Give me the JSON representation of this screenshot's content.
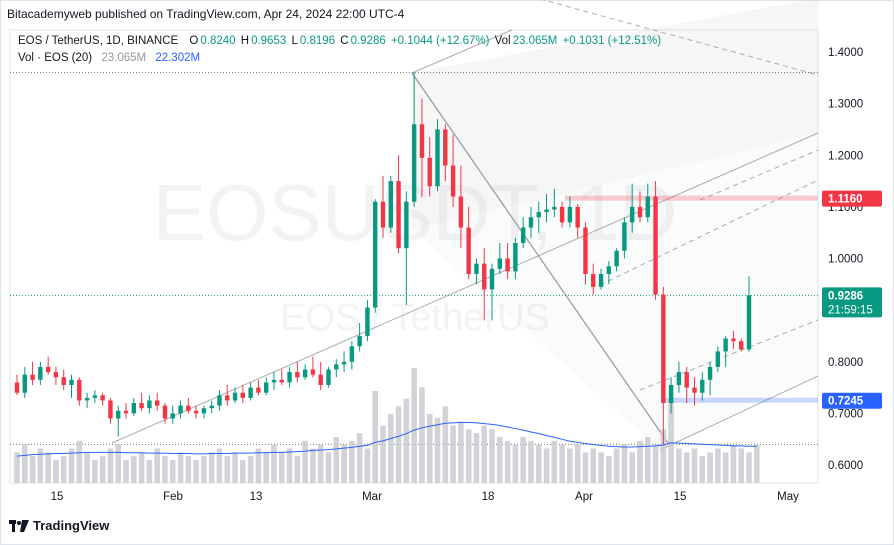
{
  "header": {
    "publisher_line": "Bitacademyweb published on TradingView.com, Apr 24, 2024 22:00 UTC-4"
  },
  "legend": {
    "symbol": "EOS / TetherUS, 1D, BINANCE",
    "open_label": "O",
    "open": "0.8240",
    "high_label": "H",
    "high": "0.9653",
    "low_label": "L",
    "low": "0.8196",
    "close_label": "C",
    "close": "0.9286",
    "change": "+0.1044 (+12.67%)",
    "vol_label": "Vol",
    "vol": "23.065M",
    "vol_change": "+0.1031 (+12.51%)",
    "vol_indicator": "Vol · EOS (20)",
    "vol_value": "23.065M",
    "vol_ma": "22.302M"
  },
  "watermark": {
    "symbol": "EOSUSDT, 1D",
    "name": "EOS / TetherUS"
  },
  "footer": {
    "brand": "TradingView"
  },
  "colors": {
    "up": "#089981",
    "down": "#f23645",
    "volume": "#c9cbd1",
    "vol_ma": "#2962ff",
    "resistance": "#f23645",
    "support": "#2962ff",
    "channel": "#a9acb4",
    "price_tag": "#089981"
  },
  "chart_data": {
    "type": "candlestick",
    "y_scale": {
      "min": 0.56,
      "max": 1.42
    },
    "y_ticks": [
      "1.4000",
      "1.3000",
      "1.2000",
      "1.1000",
      "1.0000",
      "0.9000",
      "0.8000",
      "0.7000",
      "0.6000"
    ],
    "x_ticks": [
      "15",
      "Feb",
      "13",
      "Mar",
      "18",
      "Apr",
      "15",
      "May"
    ],
    "tags": [
      {
        "label": "1.1160",
        "value": 1.116,
        "color": "#f23645"
      },
      {
        "label": "0.9286",
        "sub": "21:59:15",
        "value": 0.9286,
        "color": "#089981"
      },
      {
        "label": "0.7245",
        "value": 0.7245,
        "color": "#2962ff"
      }
    ],
    "candles": [
      [
        0.76,
        0.775,
        0.735,
        0.74
      ],
      [
        0.74,
        0.79,
        0.73,
        0.775
      ],
      [
        0.775,
        0.8,
        0.755,
        0.765
      ],
      [
        0.765,
        0.8,
        0.755,
        0.79
      ],
      [
        0.79,
        0.81,
        0.775,
        0.78
      ],
      [
        0.78,
        0.79,
        0.755,
        0.77
      ],
      [
        0.77,
        0.785,
        0.745,
        0.755
      ],
      [
        0.755,
        0.775,
        0.73,
        0.765
      ],
      [
        0.765,
        0.77,
        0.715,
        0.725
      ],
      [
        0.725,
        0.74,
        0.71,
        0.73
      ],
      [
        0.73,
        0.745,
        0.72,
        0.735
      ],
      [
        0.735,
        0.74,
        0.715,
        0.725
      ],
      [
        0.725,
        0.73,
        0.68,
        0.69
      ],
      [
        0.69,
        0.715,
        0.655,
        0.705
      ],
      [
        0.705,
        0.72,
        0.69,
        0.7
      ],
      [
        0.7,
        0.73,
        0.695,
        0.72
      ],
      [
        0.72,
        0.74,
        0.705,
        0.71
      ],
      [
        0.71,
        0.735,
        0.7,
        0.725
      ],
      [
        0.725,
        0.74,
        0.705,
        0.715
      ],
      [
        0.715,
        0.72,
        0.68,
        0.69
      ],
      [
        0.69,
        0.715,
        0.68,
        0.7
      ],
      [
        0.7,
        0.725,
        0.69,
        0.715
      ],
      [
        0.715,
        0.73,
        0.7,
        0.705
      ],
      [
        0.705,
        0.715,
        0.69,
        0.7
      ],
      [
        0.7,
        0.715,
        0.69,
        0.71
      ],
      [
        0.71,
        0.725,
        0.7,
        0.715
      ],
      [
        0.715,
        0.745,
        0.705,
        0.735
      ],
      [
        0.735,
        0.755,
        0.715,
        0.725
      ],
      [
        0.725,
        0.75,
        0.72,
        0.74
      ],
      [
        0.74,
        0.755,
        0.72,
        0.73
      ],
      [
        0.73,
        0.76,
        0.725,
        0.75
      ],
      [
        0.75,
        0.765,
        0.735,
        0.74
      ],
      [
        0.74,
        0.77,
        0.735,
        0.76
      ],
      [
        0.76,
        0.78,
        0.745,
        0.765
      ],
      [
        0.765,
        0.785,
        0.755,
        0.76
      ],
      [
        0.76,
        0.79,
        0.75,
        0.78
      ],
      [
        0.78,
        0.8,
        0.76,
        0.77
      ],
      [
        0.77,
        0.795,
        0.765,
        0.785
      ],
      [
        0.785,
        0.81,
        0.77,
        0.775
      ],
      [
        0.775,
        0.8,
        0.745,
        0.755
      ],
      [
        0.755,
        0.79,
        0.75,
        0.785
      ],
      [
        0.785,
        0.805,
        0.77,
        0.795
      ],
      [
        0.795,
        0.82,
        0.78,
        0.8
      ],
      [
        0.8,
        0.84,
        0.785,
        0.83
      ],
      [
        0.83,
        0.875,
        0.82,
        0.85
      ],
      [
        0.85,
        0.92,
        0.84,
        0.905
      ],
      [
        0.905,
        1.115,
        0.895,
        1.11
      ],
      [
        1.11,
        1.16,
        1.04,
        1.06
      ],
      [
        1.06,
        1.16,
        1.05,
        1.15
      ],
      [
        1.15,
        1.2,
        1.01,
        1.02
      ],
      [
        1.02,
        1.13,
        0.91,
        1.11
      ],
      [
        1.11,
        1.36,
        1.1,
        1.26
      ],
      [
        1.26,
        1.31,
        1.12,
        1.195
      ],
      [
        1.195,
        1.235,
        1.12,
        1.14
      ],
      [
        1.14,
        1.27,
        1.13,
        1.25
      ],
      [
        1.25,
        1.26,
        1.15,
        1.18
      ],
      [
        1.18,
        1.24,
        1.1,
        1.12
      ],
      [
        1.12,
        1.18,
        1.02,
        1.06
      ],
      [
        1.06,
        1.1,
        0.96,
        0.97
      ],
      [
        0.97,
        1.0,
        0.95,
        0.99
      ],
      [
        0.99,
        1.02,
        0.88,
        0.94
      ],
      [
        0.94,
        0.99,
        0.88,
        0.98
      ],
      [
        0.98,
        1.03,
        0.97,
        1.0
      ],
      [
        1.0,
        1.03,
        0.96,
        0.975
      ],
      [
        0.975,
        1.04,
        0.96,
        1.03
      ],
      [
        1.03,
        1.08,
        1.02,
        1.06
      ],
      [
        1.06,
        1.1,
        1.04,
        1.08
      ],
      [
        1.08,
        1.11,
        1.05,
        1.09
      ],
      [
        1.09,
        1.125,
        1.07,
        1.095
      ],
      [
        1.095,
        1.135,
        1.08,
        1.1
      ],
      [
        1.1,
        1.11,
        1.06,
        1.07
      ],
      [
        1.07,
        1.12,
        1.06,
        1.1
      ],
      [
        1.1,
        1.105,
        1.04,
        1.06
      ],
      [
        1.06,
        1.07,
        0.95,
        0.97
      ],
      [
        0.97,
        0.99,
        0.93,
        0.945
      ],
      [
        0.945,
        0.98,
        0.94,
        0.97
      ],
      [
        0.97,
        0.995,
        0.95,
        0.985
      ],
      [
        0.985,
        1.02,
        0.975,
        1.015
      ],
      [
        1.015,
        1.08,
        1.0,
        1.07
      ],
      [
        1.07,
        1.145,
        1.05,
        1.1
      ],
      [
        1.1,
        1.13,
        1.07,
        1.08
      ],
      [
        1.08,
        1.145,
        1.07,
        1.12
      ],
      [
        1.12,
        1.15,
        0.92,
        0.93
      ],
      [
        0.93,
        0.945,
        0.64,
        0.72
      ],
      [
        0.72,
        0.77,
        0.7,
        0.755
      ],
      [
        0.755,
        0.8,
        0.74,
        0.78
      ],
      [
        0.78,
        0.79,
        0.72,
        0.75
      ],
      [
        0.75,
        0.77,
        0.715,
        0.74
      ],
      [
        0.74,
        0.78,
        0.725,
        0.765
      ],
      [
        0.765,
        0.8,
        0.735,
        0.79
      ],
      [
        0.79,
        0.83,
        0.78,
        0.82
      ],
      [
        0.82,
        0.85,
        0.79,
        0.845
      ],
      [
        0.845,
        0.86,
        0.825,
        0.84
      ],
      [
        0.84,
        0.845,
        0.82,
        0.824
      ],
      [
        0.824,
        0.9653,
        0.8196,
        0.9286
      ]
    ],
    "volume": [
      8,
      10,
      7,
      9,
      8,
      6,
      7,
      9,
      11,
      8,
      6,
      7,
      9,
      10,
      6,
      7,
      8,
      6,
      9,
      7,
      6,
      8,
      7,
      6,
      7,
      8,
      9,
      7,
      8,
      6,
      7,
      9,
      8,
      10,
      8,
      9,
      7,
      11,
      9,
      10,
      8,
      12,
      10,
      11,
      13,
      9,
      24,
      15,
      18,
      20,
      22,
      30,
      25,
      18,
      17,
      20,
      15,
      16,
      14,
      13,
      15,
      14,
      12,
      11,
      10,
      12,
      11,
      10,
      9,
      11,
      10,
      9,
      10,
      8,
      9,
      8,
      7,
      9,
      10,
      8,
      11,
      12,
      10,
      14,
      22,
      9,
      8,
      9,
      7,
      8,
      9,
      8,
      10,
      9,
      8,
      10
    ],
    "vol_ma": [
      7,
      7.2,
      7.4,
      7.5,
      7.6,
      7.7,
      7.7,
      7.8,
      7.9,
      8,
      8,
      8,
      8,
      8,
      7.9,
      7.9,
      7.9,
      7.8,
      7.8,
      7.8,
      7.7,
      7.7,
      7.7,
      7.6,
      7.6,
      7.7,
      7.7,
      7.7,
      7.8,
      7.8,
      7.8,
      7.9,
      7.9,
      8,
      8,
      8.1,
      8.2,
      8.3,
      8.5,
      8.6,
      8.7,
      8.9,
      9.1,
      9.3,
      9.6,
      9.8,
      10.6,
      11,
      11.6,
      12.2,
      12.9,
      13.8,
      14.4,
      14.8,
      15.2,
      15.6,
      15.7,
      15.8,
      15.8,
      15.7,
      15.5,
      15.3,
      15,
      14.6,
      14.2,
      13.8,
      13.3,
      12.9,
      12.4,
      11.9,
      11.4,
      10.9,
      10.6,
      10.3,
      10,
      9.8,
      9.6,
      9.5,
      9.4,
      9.4,
      9.5,
      9.6,
      9.7,
      9.9,
      10.5,
      10.4,
      10.3,
      10.2,
      10.1,
      10,
      9.9,
      9.8,
      9.7,
      9.7,
      9.6,
      9.6
    ]
  }
}
